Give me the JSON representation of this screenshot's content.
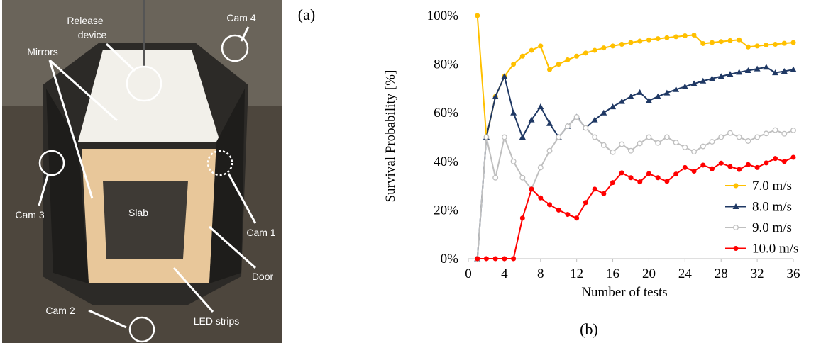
{
  "panel_a": {
    "label": "(a)",
    "photo_labels": {
      "release_device": [
        "Release",
        "device"
      ],
      "cam_4": "Cam 4",
      "mirrors": "Mirrors",
      "cam_3": "Cam 3",
      "slab": "Slab",
      "cam_1": "Cam 1",
      "door": "Door",
      "cam_2": "Cam 2",
      "led_strips": "LED strips"
    }
  },
  "chart_data": {
    "type": "line",
    "panel_label": "(b)",
    "x_label": "Number of tests",
    "y_label": "Survival Probability [%]",
    "x": [
      1,
      2,
      3,
      4,
      5,
      6,
      7,
      8,
      9,
      10,
      11,
      12,
      13,
      14,
      15,
      16,
      17,
      18,
      19,
      20,
      21,
      22,
      23,
      24,
      25,
      26,
      27,
      28,
      29,
      30,
      31,
      32,
      33,
      34,
      35,
      36
    ],
    "xlim": [
      0,
      36
    ],
    "xticks": [
      0,
      4,
      8,
      12,
      16,
      20,
      24,
      28,
      32,
      36
    ],
    "ylim": [
      0,
      100
    ],
    "yticks": [
      {
        "value": 0,
        "label": "0%"
      },
      {
        "value": 20,
        "label": "20%"
      },
      {
        "value": 40,
        "label": "40%"
      },
      {
        "value": 60,
        "label": "60%"
      },
      {
        "value": 80,
        "label": "80%"
      },
      {
        "value": 100,
        "label": "100%"
      }
    ],
    "grid": false,
    "legend": "lower right",
    "series": [
      {
        "name": "7.0 m/s",
        "color": "#FFC000",
        "marker": "circle",
        "values": [
          100,
          50,
          66.7,
          75,
          80,
          83.3,
          85.7,
          87.5,
          77.8,
          80,
          81.8,
          83.3,
          84.6,
          85.7,
          86.7,
          87.5,
          88.2,
          88.9,
          89.5,
          90,
          90.5,
          90.9,
          91.3,
          91.7,
          92,
          88.5,
          88.9,
          89.3,
          89.7,
          90,
          87.1,
          87.5,
          87.9,
          88.2,
          88.6,
          88.9
        ]
      },
      {
        "name": "8.0 m/s",
        "color": "#1F3864",
        "marker": "triangle",
        "values": [
          0,
          50,
          66.7,
          75,
          60,
          50,
          57.1,
          62.5,
          55.6,
          50,
          54.5,
          58.3,
          53.8,
          57.1,
          60,
          62.5,
          64.7,
          66.7,
          68.4,
          65,
          66.7,
          68.2,
          69.6,
          70.8,
          72,
          73.1,
          74.1,
          75,
          75.9,
          76.7,
          77.4,
          78.1,
          78.8,
          76.5,
          77.1,
          77.8
        ]
      },
      {
        "name": "9.0 m/s",
        "color": "#BFBFBF",
        "marker": "open-circle",
        "values": [
          0,
          50,
          33.3,
          50,
          40,
          33.3,
          28.6,
          37.5,
          44.4,
          50,
          54.5,
          58.3,
          53.8,
          50,
          46.7,
          43.8,
          47.1,
          44.4,
          47.4,
          50,
          47.6,
          50,
          47.8,
          45.8,
          44,
          46.2,
          48.1,
          50,
          51.7,
          50,
          48.4,
          50,
          51.5,
          52.9,
          51.4,
          52.8
        ]
      },
      {
        "name": "10.0 m/s",
        "color": "#FF0000",
        "marker": "circle",
        "values": [
          0,
          0,
          0,
          0,
          0,
          16.7,
          28.6,
          25,
          22.2,
          20,
          18.2,
          16.7,
          23.1,
          28.6,
          26.7,
          31.3,
          35.3,
          33.3,
          31.6,
          35,
          33.3,
          31.8,
          34.8,
          37.5,
          36,
          38.5,
          37,
          39.3,
          37.9,
          36.7,
          38.7,
          37.5,
          39.4,
          41.2,
          40,
          41.7
        ]
      }
    ]
  }
}
